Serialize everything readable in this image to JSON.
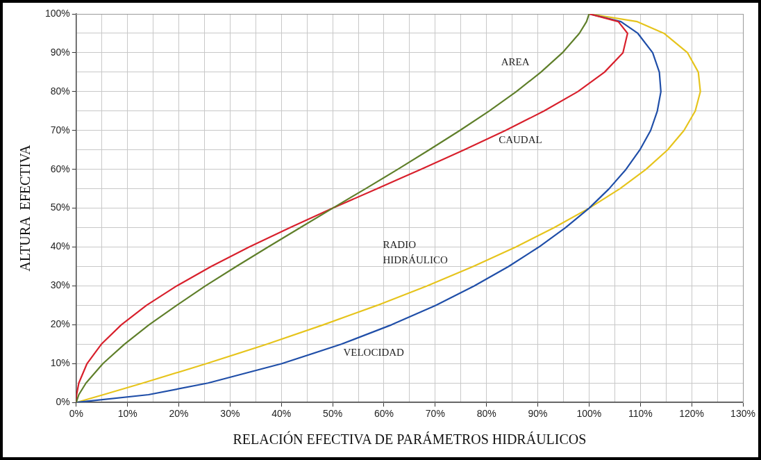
{
  "chart_data": {
    "type": "line",
    "xlabel": "RELACIÓN EFECTIVA DE PARÁMETROS HIDRÁULICOS",
    "ylabel": "ALTURA  EFECTIVA",
    "series": [
      {
        "name": "AREA",
        "color": "#5f7f2a",
        "x": [
          0,
          0.5,
          1.9,
          5.2,
          9.4,
          14.2,
          19.6,
          25.2,
          31.2,
          37.4,
          43.7,
          50,
          56.4,
          62.7,
          68.8,
          74.8,
          80.5,
          85.8,
          90.6,
          94.8,
          98.1,
          99.5,
          100
        ],
        "values": [
          0,
          2,
          5,
          10,
          15,
          20,
          25,
          30,
          35,
          40,
          45,
          50,
          55,
          60,
          65,
          70,
          75,
          80,
          85,
          90,
          95,
          98,
          100
        ]
      },
      {
        "name": "CAUDAL",
        "color": "#d8202c",
        "x": [
          0,
          0.07,
          0.5,
          2.1,
          4.9,
          8.8,
          13.7,
          19.6,
          26.3,
          33.7,
          41.7,
          50,
          58.6,
          67.2,
          75.6,
          83.7,
          91.2,
          97.8,
          103,
          106.6,
          107.5,
          105.7,
          100
        ],
        "values": [
          0,
          2,
          5,
          10,
          15,
          20,
          25,
          30,
          35,
          40,
          45,
          50,
          55,
          60,
          65,
          70,
          75,
          80,
          85,
          90,
          95,
          98,
          100
        ]
      },
      {
        "name": "VELOCIDAD",
        "color": "#1f4ea8",
        "x": [
          0,
          14.1,
          25.7,
          40.1,
          51.7,
          61.5,
          70.1,
          77.6,
          84.3,
          90.2,
          95.4,
          100,
          103.9,
          107.2,
          109.9,
          112,
          113.3,
          114,
          113.7,
          112.4,
          109.5,
          106.2,
          100
        ],
        "values": [
          0,
          2,
          5,
          10,
          15,
          20,
          25,
          30,
          35,
          40,
          45,
          50,
          55,
          60,
          65,
          70,
          75,
          80,
          85,
          90,
          95,
          98,
          100
        ]
      },
      {
        "name": "RADIO HIDRÁULICO",
        "color": "#e6c41c",
        "x": [
          0,
          5.3,
          13,
          25.4,
          37.2,
          48.2,
          58.7,
          68.4,
          77.4,
          85.7,
          93.2,
          100,
          106,
          111.1,
          115.3,
          118.5,
          120.7,
          121.7,
          121.3,
          119.2,
          114.6,
          109.4,
          100
        ],
        "values": [
          0,
          2,
          5,
          10,
          15,
          20,
          25,
          30,
          35,
          40,
          45,
          50,
          55,
          60,
          65,
          70,
          75,
          80,
          85,
          90,
          95,
          98,
          100
        ]
      }
    ],
    "xlim": [
      0,
      130
    ],
    "ylim": [
      0,
      100
    ],
    "xticks": [
      {
        "value": 0,
        "label": "0%"
      },
      {
        "value": 5,
        "label": null
      },
      {
        "value": 10,
        "label": "10%"
      },
      {
        "value": 15,
        "label": null
      },
      {
        "value": 20,
        "label": "20%"
      },
      {
        "value": 25,
        "label": null
      },
      {
        "value": 30,
        "label": "30%"
      },
      {
        "value": 35,
        "label": null
      },
      {
        "value": 40,
        "label": "40%"
      },
      {
        "value": 45,
        "label": null
      },
      {
        "value": 50,
        "label": "50%"
      },
      {
        "value": 55,
        "label": null
      },
      {
        "value": 60,
        "label": "60%"
      },
      {
        "value": 65,
        "label": null
      },
      {
        "value": 70,
        "label": "70%"
      },
      {
        "value": 75,
        "label": null
      },
      {
        "value": 80,
        "label": "80%"
      },
      {
        "value": 85,
        "label": null
      },
      {
        "value": 90,
        "label": "90%"
      },
      {
        "value": 95,
        "label": null
      },
      {
        "value": 100,
        "label": "100%"
      },
      {
        "value": 105,
        "label": null
      },
      {
        "value": 110,
        "label": "110%"
      },
      {
        "value": 115,
        "label": null
      },
      {
        "value": 120,
        "label": "120%"
      },
      {
        "value": 125,
        "label": null
      },
      {
        "value": 130,
        "label": "130%"
      }
    ],
    "yticks": [
      {
        "value": 0,
        "label": "0%"
      },
      {
        "value": 5,
        "label": null
      },
      {
        "value": 10,
        "label": "10%"
      },
      {
        "value": 15,
        "label": null
      },
      {
        "value": 20,
        "label": "20%"
      },
      {
        "value": 25,
        "label": null
      },
      {
        "value": 30,
        "label": "30%"
      },
      {
        "value": 35,
        "label": null
      },
      {
        "value": 40,
        "label": "40%"
      },
      {
        "value": 45,
        "label": null
      },
      {
        "value": 50,
        "label": "50%"
      },
      {
        "value": 55,
        "label": null
      },
      {
        "value": 60,
        "label": "60%"
      },
      {
        "value": 65,
        "label": null
      },
      {
        "value": 70,
        "label": "70%"
      },
      {
        "value": 75,
        "label": null
      },
      {
        "value": 80,
        "label": "80%"
      },
      {
        "value": 85,
        "label": null
      },
      {
        "value": 90,
        "label": "90%"
      },
      {
        "value": 95,
        "label": null
      },
      {
        "value": 100,
        "label": "100%"
      }
    ],
    "grid": true,
    "legend": false,
    "marker": "none",
    "line_style": "solid"
  }
}
